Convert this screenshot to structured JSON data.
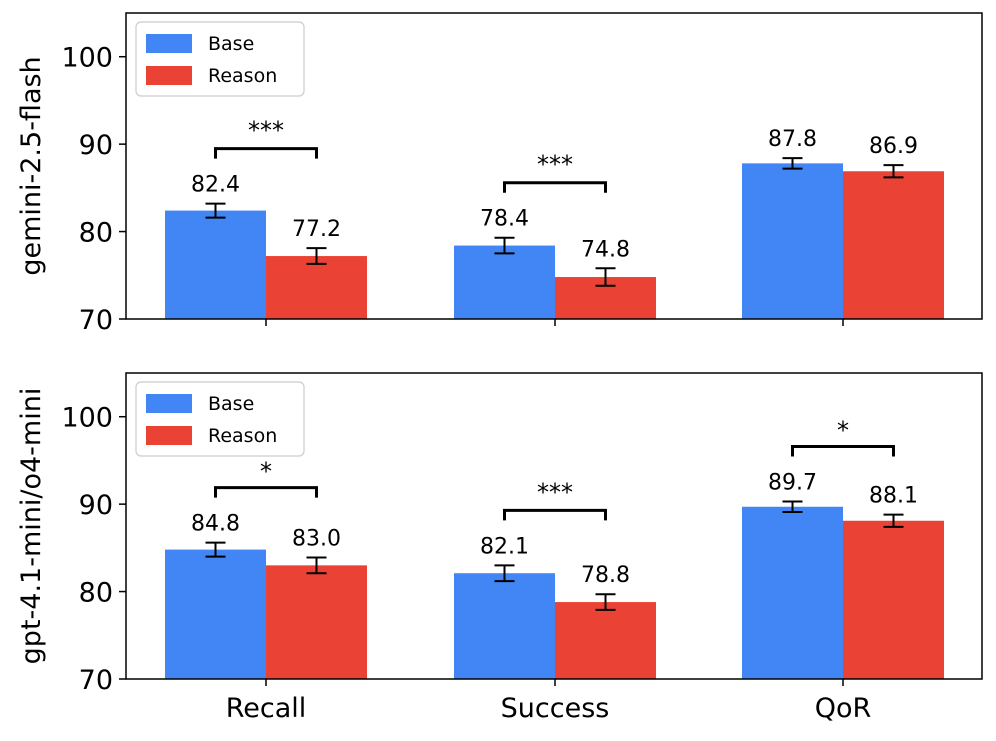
{
  "chart_data": [
    {
      "type": "bar",
      "ylabel": "gemini-2.5-flash",
      "ylim": [
        70,
        105
      ],
      "yticks": [
        70,
        80,
        90,
        100
      ],
      "categories": [
        "Recall",
        "Success",
        "QoR"
      ],
      "series": [
        {
          "name": "Base",
          "color": "#4285F4",
          "values": [
            82.4,
            78.4,
            87.8
          ],
          "errors": [
            0.8,
            0.9,
            0.6
          ],
          "labels": [
            "82.4",
            "78.4",
            "87.8"
          ]
        },
        {
          "name": "Reason",
          "color": "#EA4335",
          "values": [
            77.2,
            74.8,
            86.9
          ],
          "errors": [
            0.9,
            1.0,
            0.7
          ],
          "labels": [
            "77.2",
            "74.8",
            "86.9"
          ]
        }
      ],
      "significance": [
        "***",
        "***",
        ""
      ],
      "legend": {
        "position": "top-left",
        "entries": [
          "Base",
          "Reason"
        ]
      }
    },
    {
      "type": "bar",
      "ylabel": "gpt-4.1-mini/o4-mini",
      "ylim": [
        70,
        105
      ],
      "yticks": [
        70,
        80,
        90,
        100
      ],
      "categories": [
        "Recall",
        "Success",
        "QoR"
      ],
      "series": [
        {
          "name": "Base",
          "color": "#4285F4",
          "values": [
            84.8,
            82.1,
            89.7
          ],
          "errors": [
            0.8,
            0.9,
            0.6
          ],
          "labels": [
            "84.8",
            "82.1",
            "89.7"
          ]
        },
        {
          "name": "Reason",
          "color": "#EA4335",
          "values": [
            83.0,
            78.8,
            88.1
          ],
          "errors": [
            0.9,
            0.9,
            0.7
          ],
          "labels": [
            "83.0",
            "78.8",
            "88.1"
          ]
        }
      ],
      "significance": [
        "*",
        "***",
        "*"
      ],
      "legend": {
        "position": "top-left",
        "entries": [
          "Base",
          "Reason"
        ]
      }
    }
  ]
}
